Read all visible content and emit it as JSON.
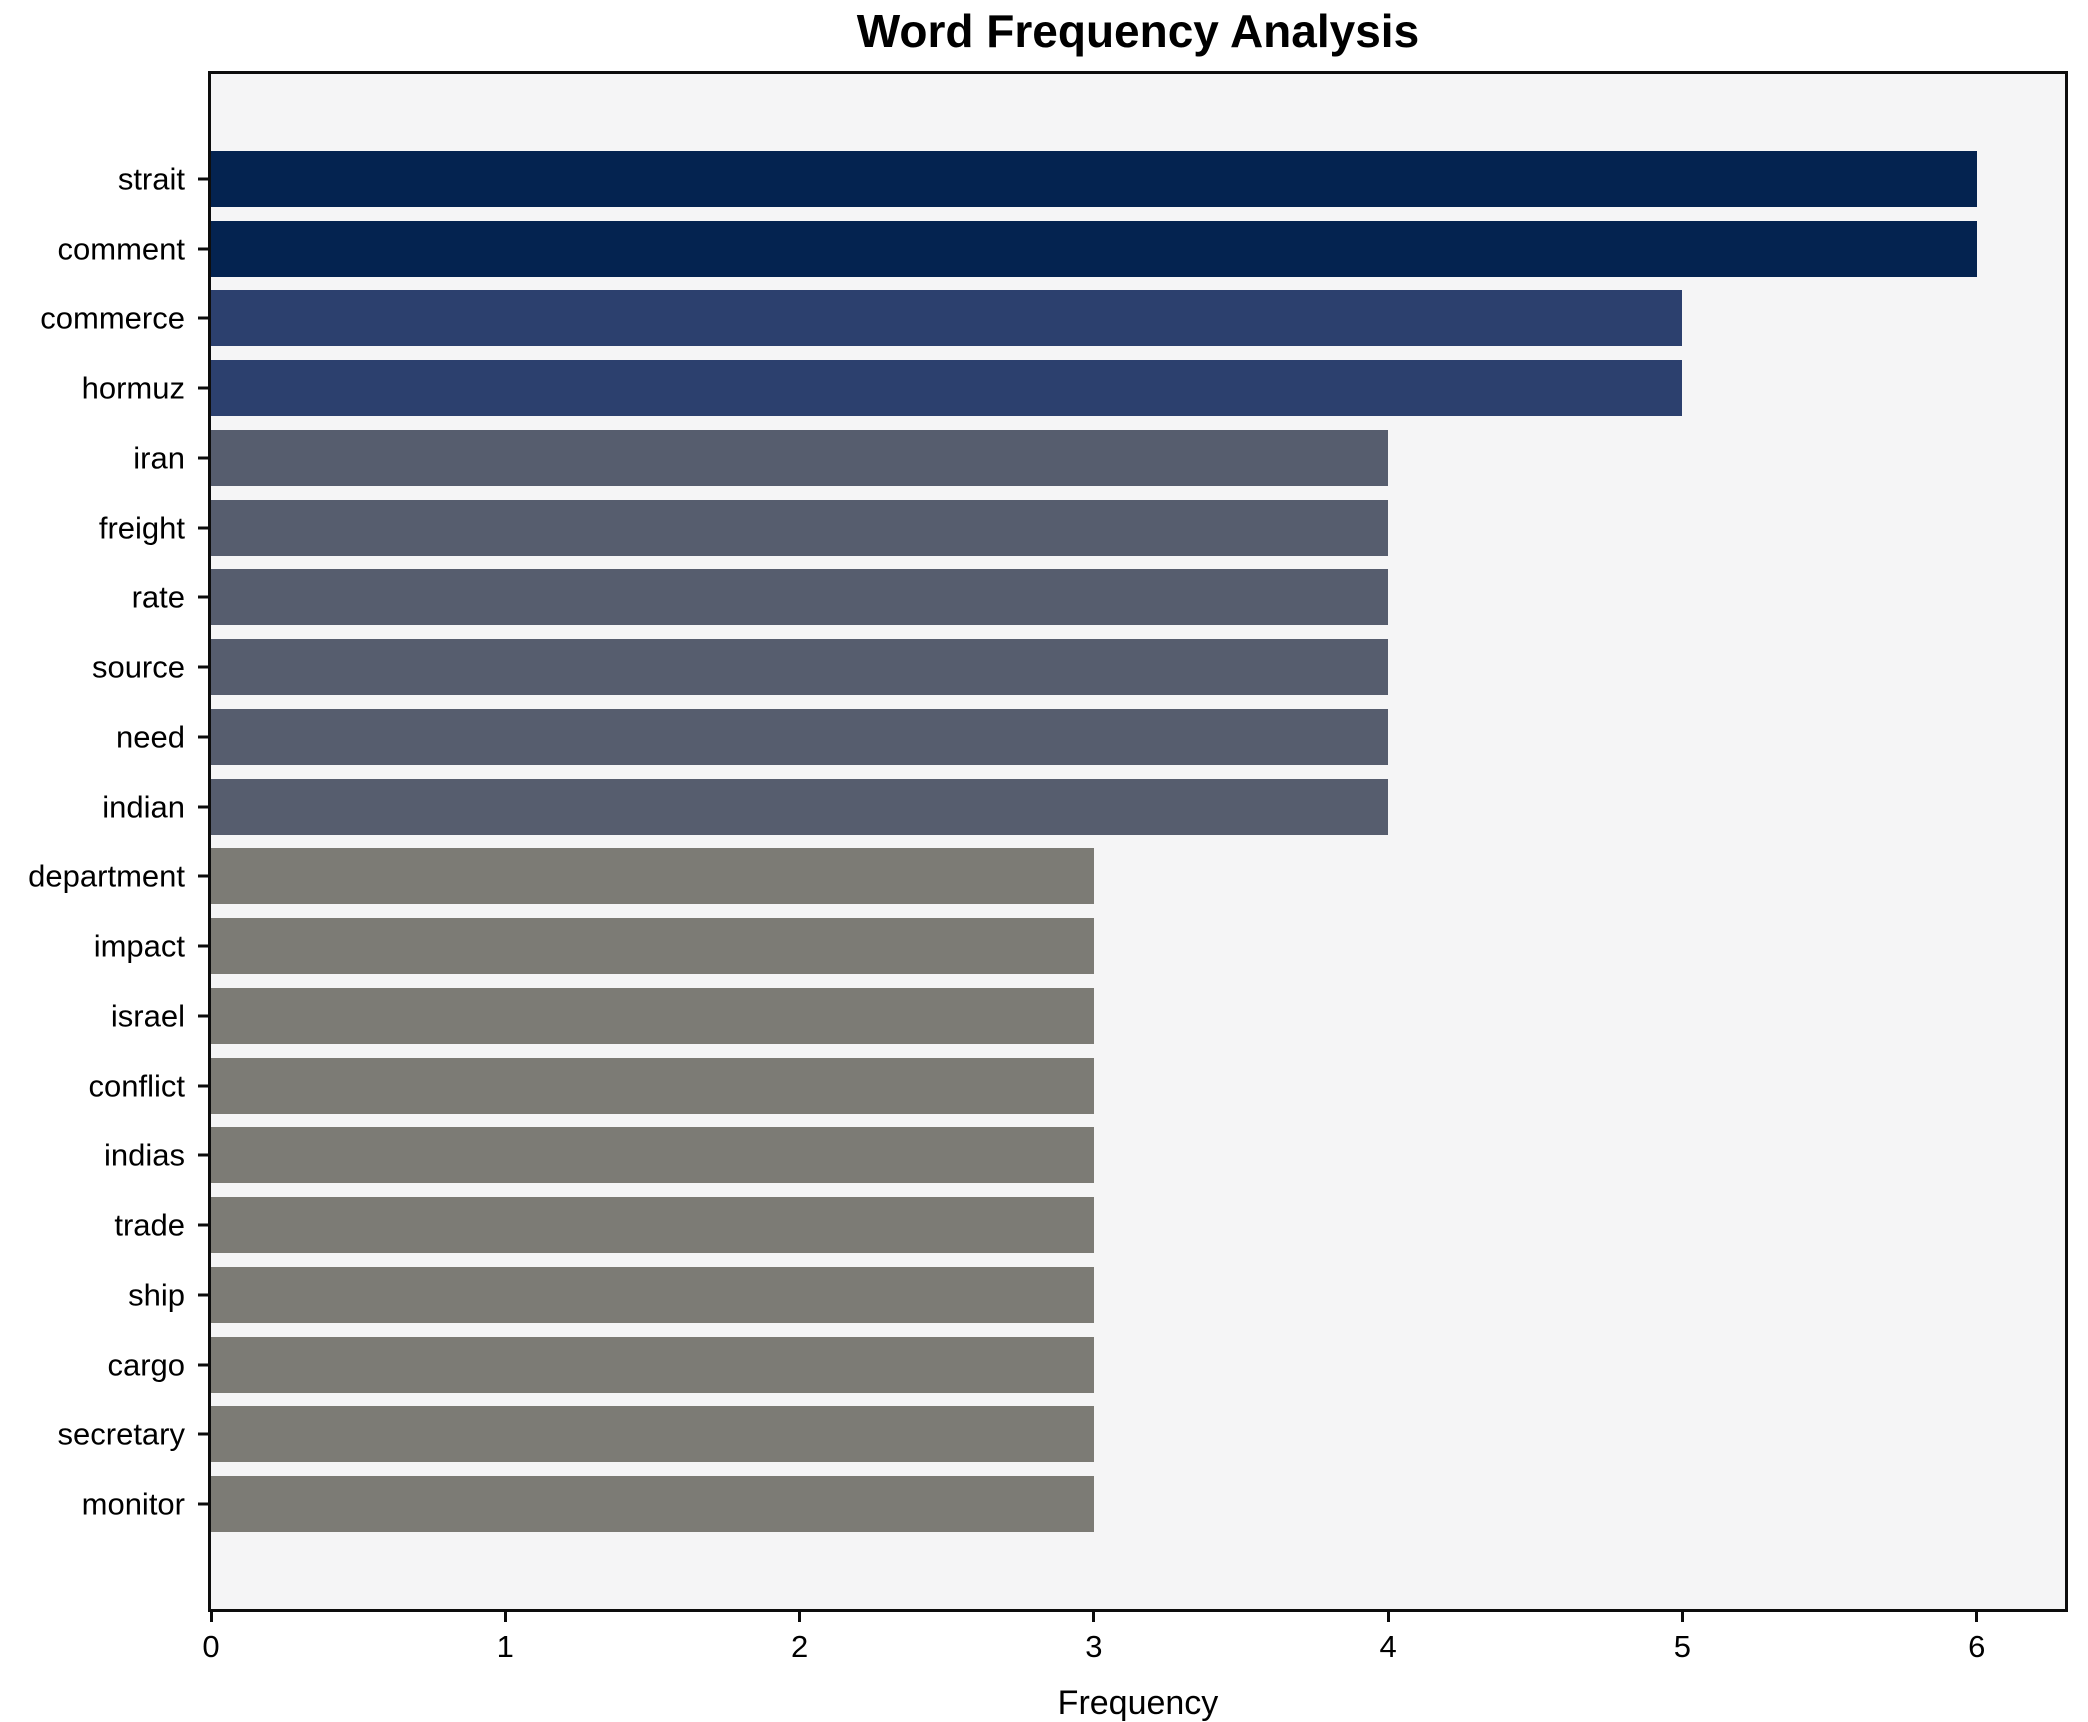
{
  "chart_data": {
    "type": "bar",
    "orientation": "horizontal",
    "title": "Word Frequency Analysis",
    "xlabel": "Frequency",
    "categories": [
      "strait",
      "comment",
      "commerce",
      "hormuz",
      "iran",
      "freight",
      "rate",
      "source",
      "need",
      "indian",
      "department",
      "impact",
      "israel",
      "conflict",
      "indias",
      "trade",
      "ship",
      "cargo",
      "secretary",
      "monitor"
    ],
    "values": [
      6,
      6,
      5,
      5,
      4,
      4,
      4,
      4,
      4,
      4,
      3,
      3,
      3,
      3,
      3,
      3,
      3,
      3,
      3,
      3
    ],
    "bar_colors": [
      "#042350",
      "#042350",
      "#2c406e",
      "#2c406e",
      "#565d6e",
      "#565d6e",
      "#565d6e",
      "#565d6e",
      "#565d6e",
      "#565d6e",
      "#7c7b75",
      "#7c7b75",
      "#7c7b75",
      "#7c7b75",
      "#7c7b75",
      "#7c7b75",
      "#7c7b75",
      "#7c7b75",
      "#7c7b75",
      "#7c7b75"
    ],
    "xticks": [
      0,
      1,
      2,
      3,
      4,
      5,
      6
    ],
    "xlim": [
      0,
      6.3
    ],
    "grid": false,
    "legend_position": "none",
    "colors": {
      "plot_bg": "#f5f5f6",
      "fig_bg": "#ffffff",
      "spine": "#0d0d0d",
      "text": "#000000"
    }
  }
}
